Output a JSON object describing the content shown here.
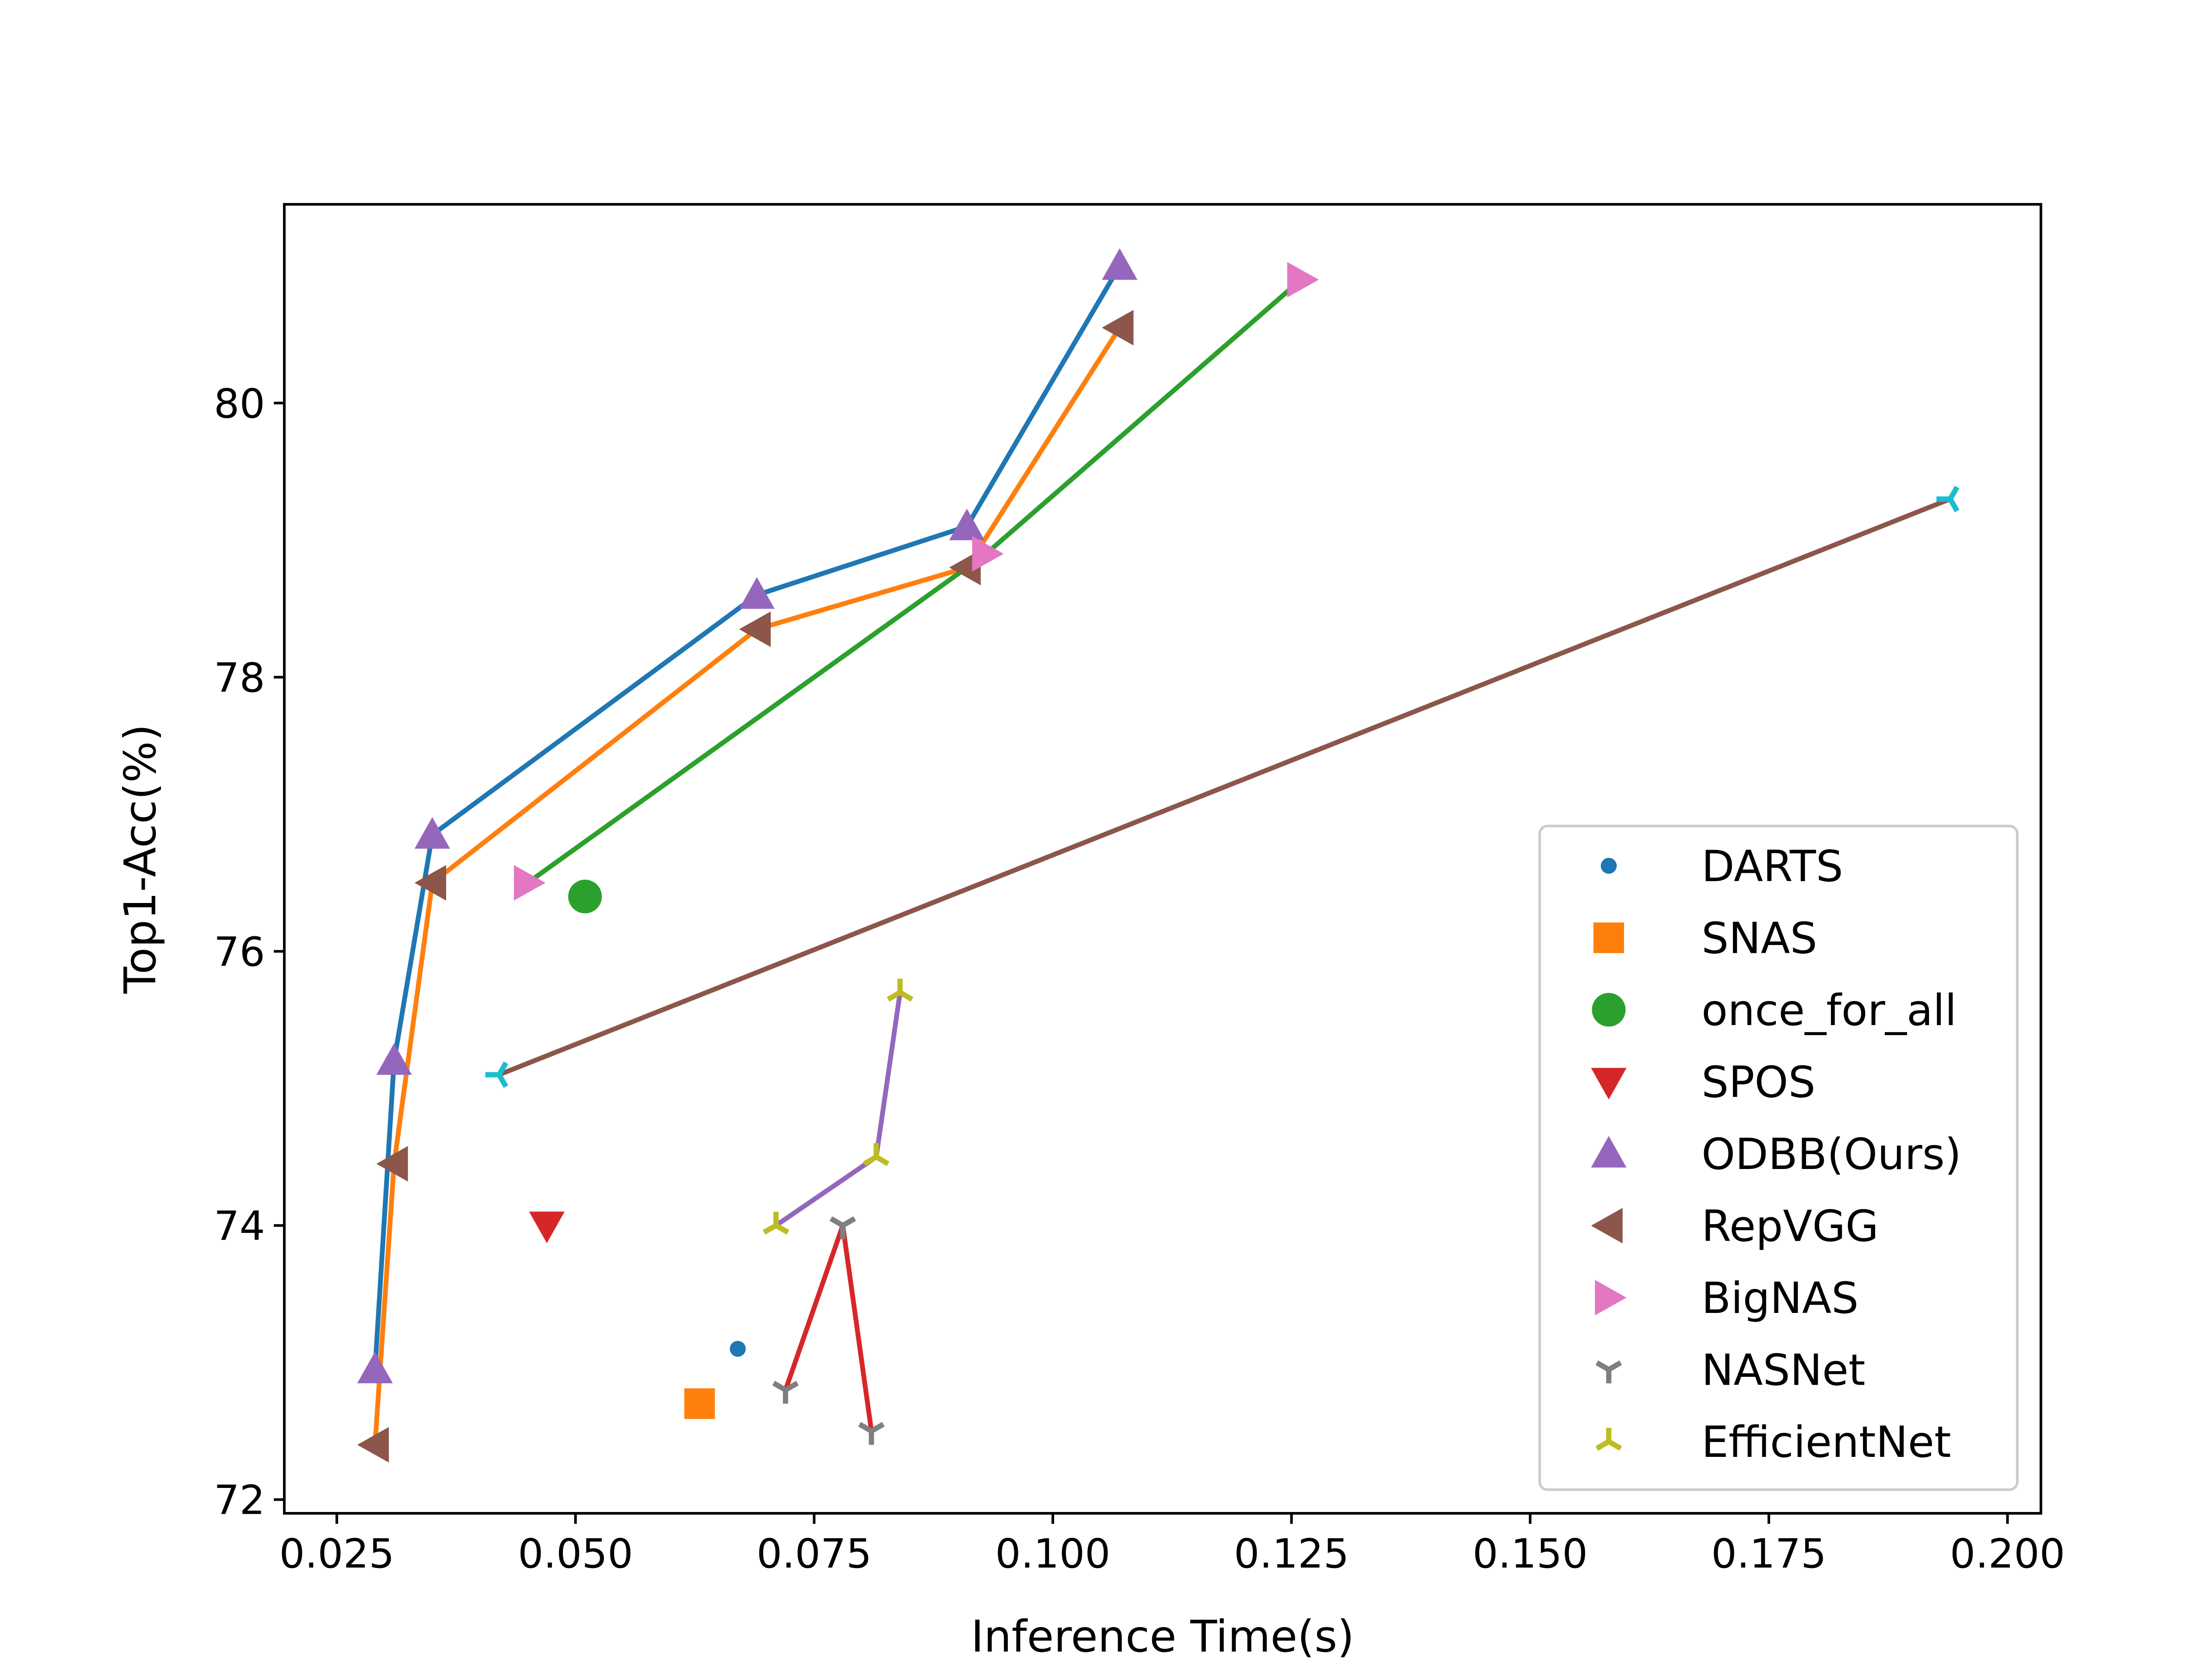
{
  "chart_data": {
    "type": "scatter",
    "title": "",
    "xlabel": "Inference Time(s)",
    "ylabel": "Top1-Acc(%)",
    "xlim": [
      0.0195,
      0.2035
    ],
    "ylim": [
      71.9,
      81.45
    ],
    "xticks": [
      0.025,
      0.05,
      0.075,
      0.1,
      0.125,
      0.15,
      0.175,
      0.2
    ],
    "xtick_labels": [
      "0.025",
      "0.050",
      "0.075",
      "0.100",
      "0.125",
      "0.150",
      "0.175",
      "0.200"
    ],
    "yticks": [
      72,
      74,
      76,
      78,
      80
    ],
    "ytick_labels": [
      "72",
      "74",
      "76",
      "78",
      "80"
    ],
    "grid": false,
    "legend_position": "lower-right",
    "series": [
      {
        "name": "DARTS",
        "marker": "circle-small",
        "color": "#1f77b4",
        "points": [
          [
            0.067,
            73.1
          ]
        ],
        "line": null
      },
      {
        "name": "SNAS",
        "marker": "square",
        "color": "#ff7f0e",
        "points": [
          [
            0.063,
            72.7
          ]
        ],
        "line": null
      },
      {
        "name": "once_for_all",
        "marker": "circle",
        "color": "#2ca02c",
        "points": [
          [
            0.051,
            76.4
          ]
        ],
        "line": null
      },
      {
        "name": "SPOS",
        "marker": "triangle-down",
        "color": "#d62728",
        "points": [
          [
            0.047,
            74.0
          ]
        ],
        "line": null
      },
      {
        "name": "ODBB(Ours)",
        "marker": "triangle-up",
        "color": "#9467bd",
        "points": [
          [
            0.029,
            72.95
          ],
          [
            0.031,
            75.2
          ],
          [
            0.035,
            76.85
          ],
          [
            0.069,
            78.6
          ],
          [
            0.091,
            79.1
          ],
          [
            0.107,
            81.0
          ]
        ],
        "line": {
          "color": "#1f77b4",
          "points": [
            [
              0.029,
              72.95
            ],
            [
              0.031,
              75.2
            ],
            [
              0.035,
              76.85
            ],
            [
              0.069,
              78.6
            ],
            [
              0.091,
              79.1
            ],
            [
              0.107,
              81.0
            ]
          ]
        }
      },
      {
        "name": "RepVGG",
        "marker": "triangle-left",
        "color": "#8c564b",
        "points": [
          [
            0.029,
            72.4
          ],
          [
            0.031,
            74.45
          ],
          [
            0.035,
            76.5
          ],
          [
            0.069,
            78.35
          ],
          [
            0.091,
            78.8
          ],
          [
            0.107,
            80.55
          ]
        ],
        "line": {
          "color": "#ff7f0e",
          "points": [
            [
              0.029,
              72.4
            ],
            [
              0.031,
              74.45
            ],
            [
              0.035,
              76.5
            ],
            [
              0.069,
              78.35
            ],
            [
              0.091,
              78.8
            ],
            [
              0.107,
              80.55
            ]
          ]
        }
      },
      {
        "name": "BigNAS",
        "marker": "triangle-right",
        "color": "#e377c2",
        "points": [
          [
            0.045,
            76.5
          ],
          [
            0.093,
            78.9
          ],
          [
            0.126,
            80.9
          ]
        ],
        "line": {
          "color": "#2ca02c",
          "points": [
            [
              0.045,
              76.5
            ],
            [
              0.093,
              78.9
            ],
            [
              0.126,
              80.9
            ]
          ]
        }
      },
      {
        "name": "NASNet",
        "marker": "tri-down",
        "color": "#7f7f7f",
        "points": [
          [
            0.072,
            72.8
          ],
          [
            0.078,
            74.0
          ],
          [
            0.081,
            72.5
          ]
        ],
        "line": {
          "color": "#d62728",
          "points": [
            [
              0.072,
              72.8
            ],
            [
              0.078,
              74.0
            ],
            [
              0.081,
              72.5
            ]
          ]
        }
      },
      {
        "name": "EfficientNet",
        "marker": "tri-up",
        "color": "#bcbd22",
        "points": [
          [
            0.071,
            74.0
          ],
          [
            0.0815,
            74.5
          ],
          [
            0.084,
            75.7
          ]
        ],
        "line": {
          "color": "#9467bd",
          "points": [
            [
              0.071,
              74.0
            ],
            [
              0.0815,
              74.5
            ],
            [
              0.084,
              75.7
            ]
          ]
        }
      }
    ],
    "extra_lines": [
      {
        "color": "#8c564b",
        "marker": "tri-left",
        "marker_color": "#17becf",
        "points": [
          [
            0.042,
            75.1
          ],
          [
            0.194,
            79.3
          ]
        ]
      }
    ]
  }
}
